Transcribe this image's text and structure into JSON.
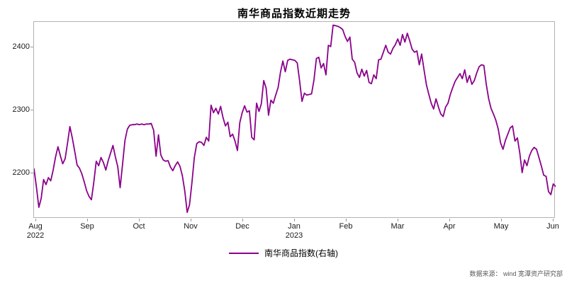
{
  "chart_data": {
    "type": "line",
    "title": "南华商品指数近期走势",
    "source_note": "数据来源： wind 宽潭资产研究部",
    "legend": {
      "label": "南华商品指数(右轴)",
      "position": "bottom"
    },
    "grid": false,
    "y_ticks": [
      2200,
      2300,
      2400
    ],
    "y_range": [
      2128,
      2440
    ],
    "x_tick_labels": [
      "Aug",
      "Sep",
      "Oct",
      "Nov",
      "Dec",
      "Jan",
      "Feb",
      "Mar",
      "Apr",
      "May",
      "Jun"
    ],
    "x_tick_years": {
      "0": "2022",
      "5": "2023"
    },
    "series": [
      {
        "name": "南华商品指数(右轴)",
        "color": "#8B008B",
        "values": [
          2207,
          2178,
          2146,
          2160,
          2190,
          2182,
          2193,
          2188,
          2205,
          2226,
          2242,
          2228,
          2215,
          2223,
          2248,
          2274,
          2256,
          2235,
          2213,
          2208,
          2199,
          2186,
          2172,
          2163,
          2158,
          2186,
          2219,
          2212,
          2225,
          2217,
          2205,
          2220,
          2232,
          2244,
          2226,
          2210,
          2177,
          2214,
          2252,
          2270,
          2276,
          2277,
          2277,
          2278,
          2277,
          2278,
          2277,
          2278,
          2278,
          2279,
          2268,
          2227,
          2261,
          2229,
          2221,
          2219,
          2220,
          2210,
          2204,
          2212,
          2218,
          2211,
          2196,
          2172,
          2138,
          2150,
          2185,
          2225,
          2247,
          2250,
          2249,
          2244,
          2257,
          2251,
          2308,
          2296,
          2303,
          2294,
          2306,
          2288,
          2275,
          2281,
          2258,
          2262,
          2251,
          2236,
          2280,
          2296,
          2307,
          2297,
          2299,
          2257,
          2253,
          2311,
          2298,
          2310,
          2347,
          2335,
          2292,
          2316,
          2311,
          2324,
          2336,
          2360,
          2378,
          2361,
          2379,
          2381,
          2380,
          2379,
          2375,
          2346,
          2314,
          2327,
          2324,
          2325,
          2326,
          2348,
          2382,
          2384,
          2367,
          2374,
          2356,
          2403,
          2401,
          2435,
          2434,
          2433,
          2431,
          2428,
          2417,
          2409,
          2416,
          2381,
          2376,
          2359,
          2352,
          2365,
          2354,
          2363,
          2344,
          2342,
          2356,
          2350,
          2380,
          2381,
          2392,
          2403,
          2392,
          2389,
          2398,
          2404,
          2413,
          2403,
          2420,
          2408,
          2422,
          2410,
          2397,
          2392,
          2394,
          2372,
          2389,
          2364,
          2340,
          2325,
          2311,
          2302,
          2318,
          2305,
          2294,
          2290,
          2305,
          2311,
          2325,
          2336,
          2346,
          2352,
          2358,
          2350,
          2364,
          2344,
          2355,
          2341,
          2347,
          2359,
          2369,
          2372,
          2371,
          2341,
          2318,
          2303,
          2294,
          2284,
          2270,
          2248,
          2238,
          2252,
          2262,
          2272,
          2275,
          2251,
          2256,
          2232,
          2201,
          2221,
          2212,
          2227,
          2236,
          2241,
          2238,
          2225,
          2212,
          2197,
          2195,
          2171,
          2166,
          2183,
          2179
        ]
      }
    ]
  }
}
